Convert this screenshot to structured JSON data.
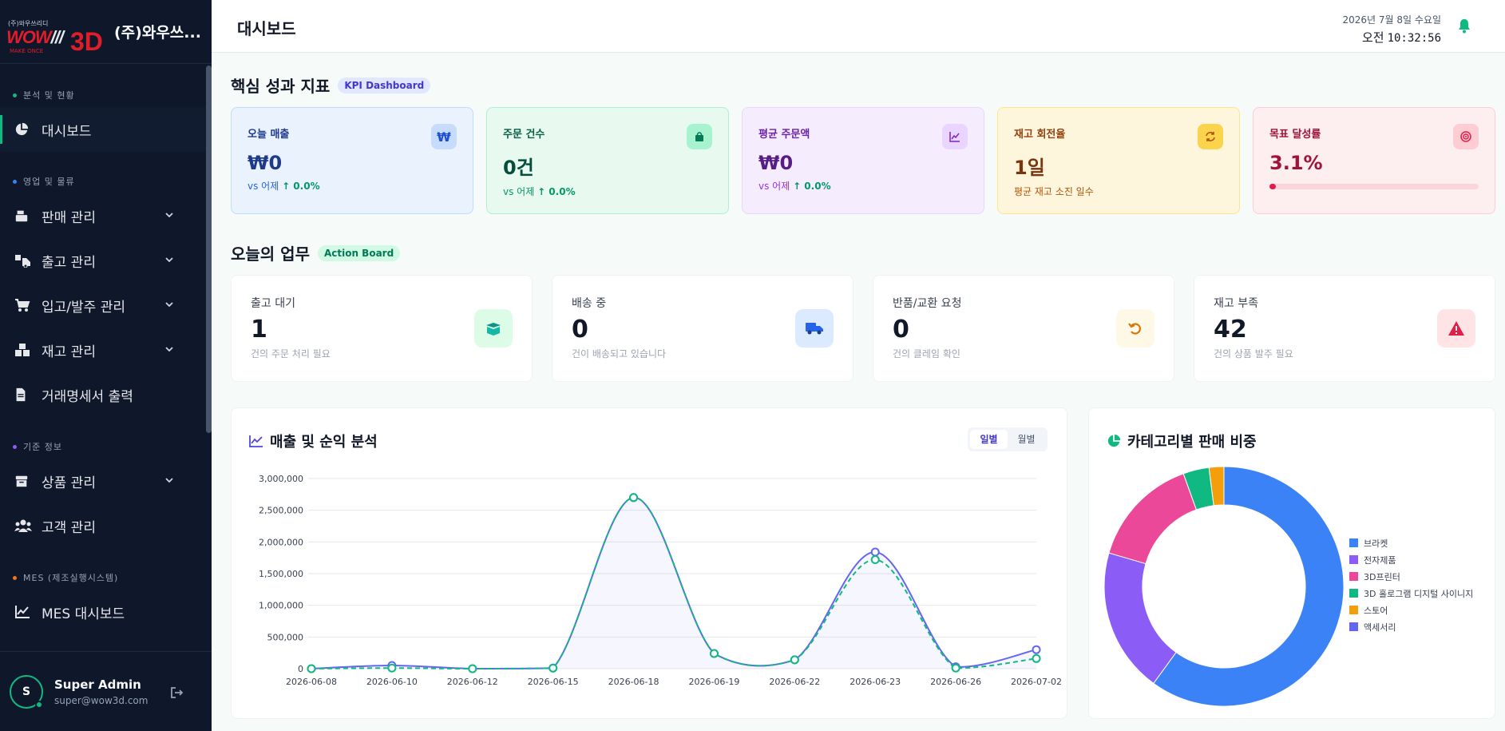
{
  "brand": {
    "logo_small": "(주)와우쓰리디",
    "logo_wow": "WOW",
    "logo_slashes": "///",
    "logo_3d": "3D",
    "logo_tagline": "MAKE ONCE",
    "name": "(주)와우쓰..."
  },
  "sidebar": {
    "sections": [
      {
        "label": "분석 및 현황",
        "color": "#10b981"
      },
      {
        "label": "영업 및 물류",
        "color": "#3b82f6"
      },
      {
        "label": "기준 정보",
        "color": "#8b5cf6"
      },
      {
        "label": "MES (제조실행시스템)",
        "color": "#f97316"
      }
    ],
    "items": [
      {
        "label": "대시보드",
        "icon": "pie-chart-icon"
      },
      {
        "label": "판매 관리",
        "icon": "cash-register-icon"
      },
      {
        "label": "출고 관리",
        "icon": "truck-loading-icon"
      },
      {
        "label": "입고/발주 관리",
        "icon": "cart-icon"
      },
      {
        "label": "재고 관리",
        "icon": "boxes-icon"
      },
      {
        "label": "거래명세서 출력",
        "icon": "document-icon"
      },
      {
        "label": "상품 관리",
        "icon": "box-icon"
      },
      {
        "label": "고객 관리",
        "icon": "users-icon"
      },
      {
        "label": "MES 대시보드",
        "icon": "line-chart-icon"
      }
    ]
  },
  "user": {
    "initial": "S",
    "name": "Super Admin",
    "email": "super@wow3d.com"
  },
  "header": {
    "title": "대시보드",
    "date": "2026년 7월 8일 수요일",
    "ampm": "오전",
    "time": "10:32:56"
  },
  "kpi": {
    "title": "핵심 성과 지표",
    "badge": "KPI Dashboard",
    "cards": [
      {
        "label": "오늘 매출",
        "value": "₩0",
        "sub_prefix": "vs 어제",
        "sub_change": "↑ 0.0%",
        "icon_glyph": "₩",
        "icon": "won-icon"
      },
      {
        "label": "주문 건수",
        "value": "0건",
        "sub_prefix": "vs 어제",
        "sub_change": "↑ 0.0%",
        "icon": "shopping-bag-icon"
      },
      {
        "label": "평균 주문액",
        "value": "₩0",
        "sub_prefix": "vs 어제",
        "sub_change": "↑ 0.0%",
        "icon": "chart-line-icon"
      },
      {
        "label": "재고 회전율",
        "value": "1일",
        "sub_prefix": "평균 재고 소진 일수",
        "sub_change": "",
        "icon": "refresh-icon"
      },
      {
        "label": "목표 달성률",
        "value": "3.1%",
        "progress": 0.031,
        "icon": "target-icon"
      }
    ]
  },
  "actions": {
    "title": "오늘의 업무",
    "badge": "Action Board",
    "cards": [
      {
        "label": "출고 대기",
        "value": "1",
        "sub": "건의 주문 처리 필요",
        "icon": "open-box-icon"
      },
      {
        "label": "배송 중",
        "value": "0",
        "sub": "건이 배송되고 있습니다",
        "icon": "delivery-truck-icon"
      },
      {
        "label": "반품/교환 요청",
        "value": "0",
        "sub": "건의 클레임 확인",
        "icon": "undo-icon"
      },
      {
        "label": "재고 부족",
        "value": "42",
        "sub": "건의 상품 발주 필요",
        "icon": "warning-icon"
      }
    ]
  },
  "sales_panel": {
    "title": "매출 및 순익 분석",
    "toggle_daily": "일별",
    "toggle_monthly": "월별"
  },
  "category_panel": {
    "title": "카테고리별 판매 비중"
  },
  "chart_data": [
    {
      "type": "line",
      "title": "",
      "x": [
        "2026-06-08",
        "2026-06-10",
        "2026-06-12",
        "2026-06-15",
        "2026-06-18",
        "2026-06-19",
        "2026-06-22",
        "2026-06-23",
        "2026-06-26",
        "2026-07-02"
      ],
      "yticks": [
        "0",
        "500,000",
        "1,000,000",
        "1,500,000",
        "2,000,000",
        "2,500,000",
        "3,000,000"
      ],
      "ylim": [
        0,
        3000000
      ],
      "grid": true,
      "series": [
        {
          "values": [
            0,
            50000,
            0,
            10000,
            2700000,
            240000,
            140000,
            1840000,
            30000,
            300000
          ],
          "color": "#6366f1"
        },
        {
          "values": [
            0,
            10000,
            0,
            10000,
            2700000,
            240000,
            140000,
            1720000,
            10000,
            160000
          ],
          "color": "#10b981"
        }
      ]
    },
    {
      "type": "pie",
      "title": "",
      "legend": "right",
      "slices": [
        {
          "label": "브라켓",
          "value": 60.0,
          "color": "#3b82f6"
        },
        {
          "label": "전자제품",
          "value": 19.5,
          "color": "#8b5cf6"
        },
        {
          "label": "3D프린터",
          "value": 15.0,
          "color": "#ec4899"
        },
        {
          "label": "3D 홀로그램 디지털 사이니지",
          "value": 3.5,
          "color": "#10b981"
        },
        {
          "label": "스토어",
          "value": 2.0,
          "color": "#f59e0b"
        },
        {
          "label": "액세서리",
          "value": 0.0,
          "color": "#6366f1"
        }
      ]
    }
  ]
}
